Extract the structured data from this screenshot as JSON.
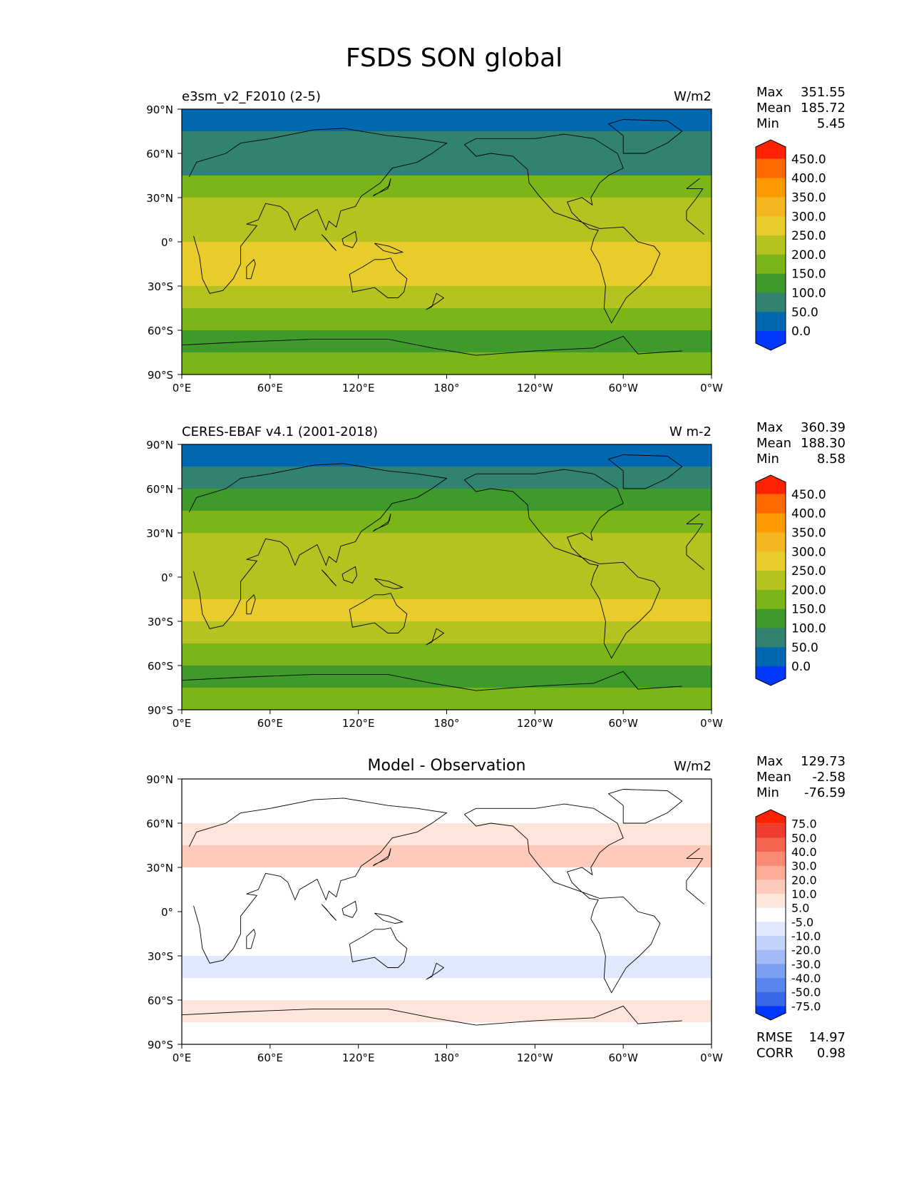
{
  "title": "FSDS SON global",
  "axes": {
    "lat_ticks": [
      "90°N",
      "60°N",
      "30°N",
      "0°",
      "30°S",
      "60°S",
      "90°S"
    ],
    "lon_ticks": [
      "0°E",
      "60°E",
      "120°E",
      "180°",
      "120°W",
      "60°W",
      "0°W"
    ]
  },
  "chart_data": [
    {
      "type": "heatmap",
      "left_title": "e3sm_v2_F2010 (2-5)",
      "center_title": "",
      "units": "W/m2",
      "stats": [
        {
          "label": "Max",
          "value": "351.55"
        },
        {
          "label": "Mean",
          "value": "185.72"
        },
        {
          "label": "Min",
          "value": "5.45"
        }
      ],
      "colorbar": {
        "labels": [
          "450.0",
          "400.0",
          "350.0",
          "300.0",
          "250.0",
          "200.0",
          "150.0",
          "100.0",
          "50.0",
          "0.0"
        ],
        "colors": [
          "#ff2200",
          "#ff6a00",
          "#ff9900",
          "#f5b721",
          "#e8cc2c",
          "#b5c21f",
          "#7cb518",
          "#3e9a2a",
          "#318271",
          "#0068b0",
          "#0038ff"
        ]
      },
      "zonal_mean": [
        [
          90,
          25
        ],
        [
          75,
          40
        ],
        [
          60,
          75
        ],
        [
          45,
          120
        ],
        [
          30,
          205
        ],
        [
          15,
          245
        ],
        [
          0,
          235
        ],
        [
          -15,
          265
        ],
        [
          -30,
          245
        ],
        [
          -45,
          195
        ],
        [
          -60,
          130
        ],
        [
          -75,
          160
        ],
        [
          -90,
          185
        ]
      ],
      "xlim": [
        0,
        360
      ],
      "ylim": [
        -90,
        90
      ]
    },
    {
      "type": "heatmap",
      "left_title": "CERES-EBAF v4.1 (2001-2018)",
      "center_title": "",
      "units": "W m-2",
      "stats": [
        {
          "label": "Max",
          "value": "360.39"
        },
        {
          "label": "Mean",
          "value": "188.30"
        },
        {
          "label": "Min",
          "value": "8.58"
        }
      ],
      "colorbar": {
        "labels": [
          "450.0",
          "400.0",
          "350.0",
          "300.0",
          "250.0",
          "200.0",
          "150.0",
          "100.0",
          "50.0",
          "0.0"
        ],
        "colors": [
          "#ff2200",
          "#ff6a00",
          "#ff9900",
          "#f5b721",
          "#e8cc2c",
          "#b5c21f",
          "#7cb518",
          "#3e9a2a",
          "#318271",
          "#0068b0",
          "#0038ff"
        ]
      },
      "zonal_mean": [
        [
          90,
          25
        ],
        [
          75,
          45
        ],
        [
          60,
          80
        ],
        [
          45,
          125
        ],
        [
          30,
          215
        ],
        [
          15,
          240
        ],
        [
          0,
          225
        ],
        [
          -15,
          265
        ],
        [
          -30,
          250
        ],
        [
          -45,
          190
        ],
        [
          -60,
          125
        ],
        [
          -75,
          165
        ],
        [
          -90,
          180
        ]
      ],
      "xlim": [
        0,
        360
      ],
      "ylim": [
        -90,
        90
      ]
    },
    {
      "type": "heatmap",
      "left_title": "",
      "center_title": "Model - Observation",
      "units": "W/m2",
      "stats": [
        {
          "label": "Max",
          "value": "129.73"
        },
        {
          "label": "Mean",
          "value": "-2.58"
        },
        {
          "label": "Min",
          "value": "-76.59"
        }
      ],
      "extra_stats": [
        {
          "label": "RMSE",
          "value": "14.97"
        },
        {
          "label": "CORR",
          "value": "0.98"
        }
      ],
      "colorbar": {
        "labels": [
          "75.0",
          "50.0",
          "40.0",
          "30.0",
          "20.0",
          "10.0",
          "5.0",
          "-5.0",
          "-10.0",
          "-20.0",
          "-30.0",
          "-40.0",
          "-50.0",
          "-75.0"
        ],
        "colors": [
          "#ff2200",
          "#f03c2e",
          "#f76450",
          "#fa8a73",
          "#fcab96",
          "#fdcabb",
          "#fee5dc",
          "#ffffff",
          "#dfe8fd",
          "#c2d2fb",
          "#a3baf6",
          "#7b9ff1",
          "#5a85ec",
          "#3a67ea",
          "#0038ff"
        ]
      },
      "zonal_mean": [
        [
          90,
          0
        ],
        [
          75,
          5
        ],
        [
          60,
          -5
        ],
        [
          45,
          15
        ],
        [
          30,
          15
        ],
        [
          15,
          -15
        ],
        [
          0,
          10
        ],
        [
          -15,
          -10
        ],
        [
          -30,
          0
        ],
        [
          -45,
          -15
        ],
        [
          -60,
          20
        ],
        [
          -75,
          -10
        ],
        [
          -90,
          15
        ]
      ],
      "xlim": [
        0,
        360
      ],
      "ylim": [
        -90,
        90
      ]
    }
  ]
}
